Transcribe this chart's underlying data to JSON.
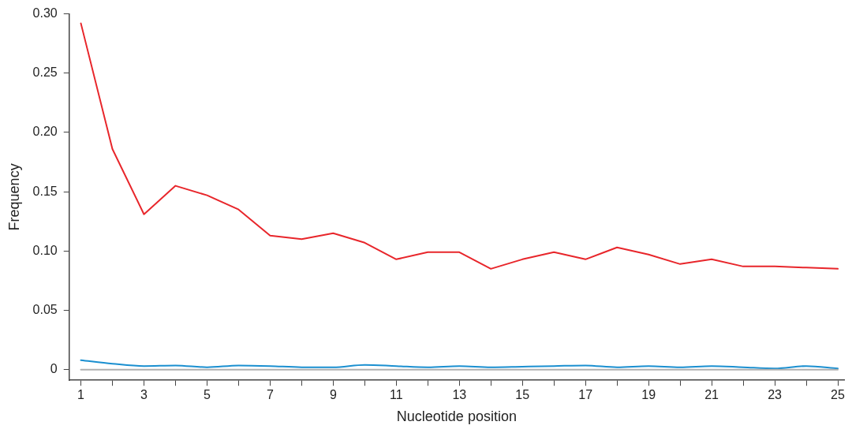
{
  "chart_data": {
    "type": "line",
    "xlabel": "Nucleotide position",
    "ylabel": "Frequency",
    "x": [
      1,
      2,
      3,
      4,
      5,
      6,
      7,
      8,
      9,
      10,
      11,
      12,
      13,
      14,
      15,
      16,
      17,
      18,
      19,
      20,
      21,
      22,
      23,
      24,
      25
    ],
    "series": [
      {
        "color": "#e8262b",
        "values": [
          0.292,
          0.186,
          0.131,
          0.155,
          0.147,
          0.135,
          0.113,
          0.11,
          0.115,
          0.107,
          0.093,
          0.099,
          0.099,
          0.085,
          0.093,
          0.099,
          0.093,
          0.103,
          0.097,
          0.089,
          0.093,
          0.087,
          0.087,
          0.086,
          0.085
        ]
      },
      {
        "color": "#1a8fd0",
        "values": [
          0.008,
          0.005,
          0.003,
          0.0035,
          0.002,
          0.0035,
          0.003,
          0.002,
          0.002,
          0.004,
          0.003,
          0.002,
          0.003,
          0.002,
          0.0025,
          0.003,
          0.0035,
          0.002,
          0.003,
          0.002,
          0.003,
          0.002,
          0.001,
          0.003,
          0.001
        ]
      },
      {
        "color": "#b0b0b0",
        "values": [
          0,
          0,
          0,
          0,
          0,
          0,
          0,
          0,
          0,
          0,
          0,
          0,
          0,
          0,
          0,
          0,
          0,
          0,
          0,
          0,
          0,
          0,
          0,
          0,
          0
        ]
      }
    ],
    "xlim": [
      0.63,
      25.2
    ],
    "ylim": [
      -0.009,
      0.3
    ],
    "xticks": [
      1,
      {
        "value": 2,
        "label": null
      },
      3,
      {
        "value": 4,
        "label": null
      },
      5,
      {
        "value": 6,
        "label": null
      },
      7,
      {
        "value": 8,
        "label": null
      },
      9,
      {
        "value": 10,
        "label": null
      },
      11,
      {
        "value": 12,
        "label": null
      },
      13,
      {
        "value": 14,
        "label": null
      },
      15,
      {
        "value": 16,
        "label": null
      },
      17,
      {
        "value": 18,
        "label": null
      },
      19,
      {
        "value": 20,
        "label": null
      },
      21,
      {
        "value": 22,
        "label": null
      },
      23,
      {
        "value": 24,
        "label": null
      },
      25
    ],
    "yticks": [
      {
        "value": 0,
        "label": "0"
      },
      {
        "value": 0.05,
        "label": "0.05"
      },
      {
        "value": 0.1,
        "label": "0.10"
      },
      {
        "value": 0.15,
        "label": "0.15"
      },
      {
        "value": 0.2,
        "label": "0.20"
      },
      {
        "value": 0.25,
        "label": "0.25"
      },
      {
        "value": 0.3,
        "label": "0.30"
      }
    ],
    "grid": false,
    "legend": false,
    "marker": "none",
    "line_style": "solid"
  }
}
